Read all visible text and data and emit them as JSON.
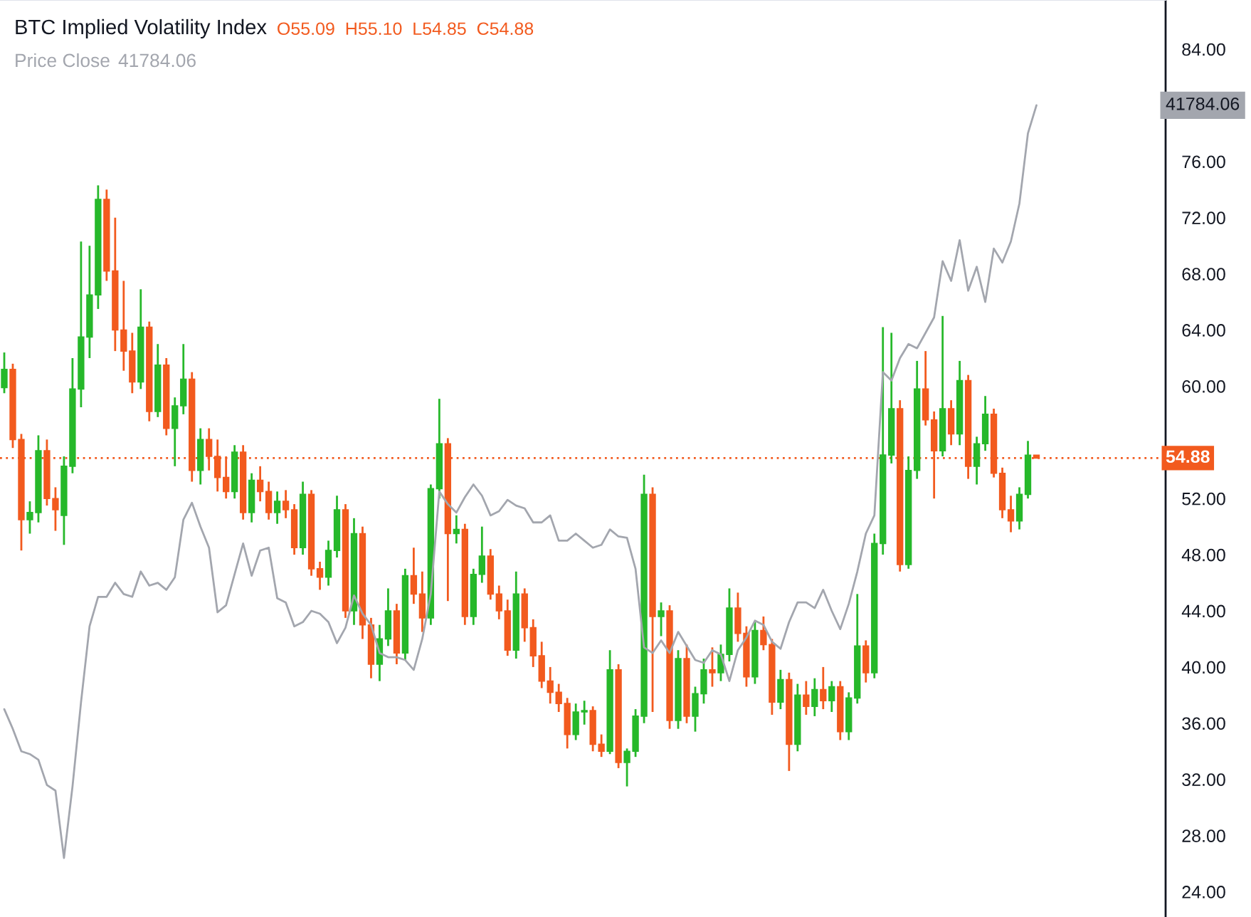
{
  "chart_data": {
    "type": "candlestick",
    "title": "BTC Implied Volatility Index",
    "categories": [
      null,
      null,
      null,
      null,
      null,
      null,
      null,
      null,
      null,
      null,
      null,
      null,
      null,
      null,
      null,
      null,
      null,
      null,
      null,
      null,
      null,
      null,
      null,
      null,
      null,
      null,
      null,
      null,
      null,
      null,
      null,
      null,
      null,
      null,
      null,
      null,
      null,
      null,
      null,
      null,
      null,
      null,
      null,
      null,
      null,
      null,
      null,
      null,
      null,
      null,
      null,
      null,
      null,
      null,
      null,
      null,
      null,
      null,
      null,
      null,
      null,
      null,
      null,
      null,
      null,
      null,
      null,
      null,
      null,
      null,
      null,
      null,
      null,
      null,
      null,
      null,
      null,
      null,
      null,
      null,
      null,
      null,
      null,
      null,
      null,
      null,
      null,
      null,
      null,
      null,
      null,
      null,
      null,
      null,
      null,
      null,
      null,
      null,
      null,
      null,
      null,
      null,
      null,
      null,
      null,
      null,
      null,
      null,
      null,
      null,
      null,
      null,
      null,
      null,
      null,
      null,
      null,
      null,
      null,
      null,
      null,
      null
    ],
    "ohlc": [
      [
        59.9,
        62.4,
        59.5,
        61.2
      ],
      [
        61.2,
        61.6,
        55.6,
        56.2
      ],
      [
        56.2,
        56.6,
        48.3,
        50.5
      ],
      [
        50.5,
        51.8,
        49.5,
        51.0
      ],
      [
        51.0,
        56.5,
        50.3,
        55.4
      ],
      [
        55.4,
        56.2,
        51.5,
        52.0
      ],
      [
        52.0,
        52.8,
        49.7,
        51.2
      ],
      [
        50.8,
        55.0,
        48.7,
        54.3
      ],
      [
        54.3,
        62.0,
        53.8,
        59.8
      ],
      [
        59.8,
        70.3,
        58.5,
        63.5
      ],
      [
        63.5,
        70.0,
        62.0,
        66.5
      ],
      [
        66.5,
        74.3,
        65.5,
        73.3
      ],
      [
        73.3,
        74.0,
        67.5,
        68.2
      ],
      [
        68.2,
        72.0,
        62.5,
        64.0
      ],
      [
        64.0,
        67.5,
        61.1,
        62.5
      ],
      [
        62.5,
        63.8,
        59.5,
        60.3
      ],
      [
        60.3,
        66.9,
        59.8,
        64.2
      ],
      [
        64.2,
        64.6,
        57.5,
        58.2
      ],
      [
        58.2,
        63.0,
        57.8,
        61.5
      ],
      [
        61.5,
        62.0,
        56.5,
        57.0
      ],
      [
        57.0,
        59.2,
        54.3,
        58.6
      ],
      [
        58.6,
        63.0,
        58.0,
        60.5
      ],
      [
        60.5,
        61.0,
        53.2,
        54.0
      ],
      [
        54.0,
        57.0,
        53.0,
        56.2
      ],
      [
        56.2,
        57.0,
        54.0,
        55.0
      ],
      [
        55.0,
        56.2,
        52.5,
        53.5
      ],
      [
        53.5,
        55.0,
        52.0,
        52.5
      ],
      [
        52.5,
        55.8,
        52.0,
        55.3
      ],
      [
        55.3,
        55.8,
        50.5,
        51.0
      ],
      [
        51.0,
        53.8,
        50.3,
        53.3
      ],
      [
        53.3,
        54.3,
        51.8,
        52.5
      ],
      [
        52.5,
        53.2,
        50.5,
        51.0
      ],
      [
        51.0,
        52.5,
        50.2,
        51.8
      ],
      [
        51.8,
        52.6,
        50.6,
        51.2
      ],
      [
        51.2,
        51.6,
        48.0,
        48.5
      ],
      [
        48.5,
        53.2,
        48.0,
        52.3
      ],
      [
        52.3,
        52.6,
        46.5,
        47.0
      ],
      [
        47.0,
        47.5,
        45.5,
        46.4
      ],
      [
        46.4,
        49.0,
        45.8,
        48.3
      ],
      [
        48.3,
        52.2,
        47.8,
        51.2
      ],
      [
        51.2,
        51.6,
        43.5,
        44.0
      ],
      [
        44.0,
        50.6,
        43.0,
        49.5
      ],
      [
        49.5,
        50.0,
        42.0,
        43.0
      ],
      [
        43.0,
        43.5,
        39.2,
        40.2
      ],
      [
        40.2,
        43.0,
        39.0,
        42.0
      ],
      [
        42.0,
        45.6,
        41.5,
        44.0
      ],
      [
        44.0,
        44.5,
        40.2,
        41.0
      ],
      [
        41.0,
        47.0,
        40.5,
        46.5
      ],
      [
        46.5,
        48.5,
        44.5,
        45.2
      ],
      [
        45.2,
        46.8,
        42.5,
        43.5
      ],
      [
        43.5,
        53.0,
        43.0,
        52.7
      ],
      [
        52.7,
        59.1,
        52.0,
        55.9
      ],
      [
        55.9,
        56.3,
        44.7,
        49.5
      ],
      [
        49.5,
        50.8,
        48.8,
        49.8
      ],
      [
        49.8,
        50.2,
        43.0,
        43.6
      ],
      [
        43.6,
        47.0,
        43.0,
        46.6
      ],
      [
        46.6,
        50.0,
        46.0,
        47.9
      ],
      [
        47.9,
        48.4,
        44.8,
        45.2
      ],
      [
        45.2,
        45.8,
        43.4,
        44.0
      ],
      [
        44.0,
        44.8,
        40.8,
        41.2
      ],
      [
        41.2,
        46.8,
        40.6,
        45.2
      ],
      [
        45.2,
        45.6,
        41.8,
        42.8
      ],
      [
        42.8,
        43.4,
        40.0,
        40.8
      ],
      [
        40.8,
        41.8,
        38.5,
        39.0
      ],
      [
        39.0,
        40.0,
        37.4,
        38.2
      ],
      [
        38.2,
        38.8,
        36.8,
        37.4
      ],
      [
        37.4,
        37.8,
        34.2,
        35.2
      ],
      [
        35.2,
        37.4,
        34.8,
        36.8
      ],
      [
        36.8,
        37.6,
        35.9,
        36.9
      ],
      [
        36.9,
        37.2,
        34.0,
        34.5
      ],
      [
        34.5,
        35.2,
        33.6,
        34.0
      ],
      [
        34.0,
        41.2,
        33.8,
        39.8
      ],
      [
        39.8,
        40.2,
        32.8,
        33.2
      ],
      [
        33.2,
        34.2,
        31.5,
        34.0
      ],
      [
        34.0,
        37.0,
        33.6,
        36.5
      ],
      [
        36.5,
        53.7,
        36.0,
        52.3
      ],
      [
        52.3,
        52.8,
        36.8,
        43.6
      ],
      [
        43.6,
        44.6,
        42.2,
        44.0
      ],
      [
        44.0,
        44.4,
        35.6,
        36.2
      ],
      [
        36.2,
        41.2,
        35.6,
        40.6
      ],
      [
        40.6,
        41.6,
        36.0,
        36.5
      ],
      [
        36.5,
        38.6,
        35.4,
        38.1
      ],
      [
        38.1,
        40.6,
        37.4,
        39.8
      ],
      [
        39.8,
        41.4,
        38.6,
        39.6
      ],
      [
        39.6,
        41.6,
        39.0,
        40.9
      ],
      [
        40.9,
        45.6,
        40.4,
        44.2
      ],
      [
        44.2,
        45.3,
        41.8,
        42.4
      ],
      [
        42.4,
        42.9,
        38.6,
        39.3
      ],
      [
        39.3,
        43.2,
        38.8,
        42.6
      ],
      [
        42.6,
        43.6,
        41.2,
        41.6
      ],
      [
        41.6,
        42.0,
        36.6,
        37.5
      ],
      [
        37.5,
        39.8,
        37.0,
        39.1
      ],
      [
        39.1,
        39.6,
        32.6,
        34.5
      ],
      [
        34.5,
        38.8,
        34.0,
        38.0
      ],
      [
        38.0,
        39.0,
        36.6,
        37.2
      ],
      [
        37.2,
        39.2,
        36.5,
        38.4
      ],
      [
        38.4,
        40.0,
        37.0,
        37.6
      ],
      [
        37.6,
        39.0,
        36.8,
        38.6
      ],
      [
        38.6,
        39.0,
        34.8,
        35.4
      ],
      [
        35.4,
        38.2,
        34.8,
        37.8
      ],
      [
        37.8,
        45.2,
        37.4,
        41.5
      ],
      [
        41.5,
        41.9,
        38.9,
        39.6
      ],
      [
        39.6,
        49.5,
        39.2,
        48.8
      ],
      [
        48.8,
        64.2,
        48.0,
        55.1
      ],
      [
        55.1,
        63.8,
        54.5,
        58.4
      ],
      [
        58.4,
        59.0,
        46.8,
        47.3
      ],
      [
        47.3,
        55.0,
        47.0,
        54.0
      ],
      [
        54.0,
        61.8,
        53.4,
        59.8
      ],
      [
        59.8,
        62.5,
        57.2,
        57.6
      ],
      [
        57.6,
        58.2,
        52.0,
        55.4
      ],
      [
        55.4,
        65.0,
        55.0,
        58.4
      ],
      [
        58.4,
        59.0,
        55.8,
        56.6
      ],
      [
        56.6,
        61.8,
        55.8,
        60.4
      ],
      [
        60.4,
        60.8,
        53.4,
        54.3
      ],
      [
        54.3,
        56.4,
        53.0,
        55.9
      ],
      [
        55.9,
        59.3,
        55.4,
        58.0
      ],
      [
        58.0,
        58.4,
        53.5,
        53.8
      ],
      [
        53.8,
        54.2,
        50.6,
        51.2
      ],
      [
        51.2,
        52.2,
        49.6,
        50.4
      ],
      [
        50.4,
        52.8,
        49.8,
        52.3
      ],
      [
        52.3,
        56.1,
        52.0,
        55.09
      ],
      [
        55.09,
        55.1,
        54.85,
        54.88
      ]
    ],
    "colors": [
      "#26b82a",
      "#f25a1e",
      "#f25a1e",
      "#26b82a",
      "#26b82a",
      "#f25a1e",
      "#f25a1e",
      "#26b82a",
      "#26b82a",
      "#26b82a",
      "#26b82a",
      "#26b82a",
      "#f25a1e",
      "#f25a1e",
      "#f25a1e",
      "#f25a1e",
      "#26b82a",
      "#f25a1e",
      "#26b82a",
      "#f25a1e",
      "#26b82a",
      "#26b82a",
      "#f25a1e",
      "#26b82a",
      "#f25a1e",
      "#f25a1e",
      "#f25a1e",
      "#26b82a",
      "#f25a1e",
      "#26b82a",
      "#f25a1e",
      "#f25a1e",
      "#26b82a",
      "#f25a1e",
      "#f25a1e",
      "#26b82a",
      "#f25a1e",
      "#f25a1e",
      "#26b82a",
      "#26b82a",
      "#f25a1e",
      "#26b82a",
      "#f25a1e",
      "#f25a1e",
      "#26b82a",
      "#26b82a",
      "#f25a1e",
      "#26b82a",
      "#f25a1e",
      "#f25a1e",
      "#26b82a",
      "#26b82a",
      "#f25a1e",
      "#26b82a",
      "#f25a1e",
      "#26b82a",
      "#26b82a",
      "#f25a1e",
      "#f25a1e",
      "#f25a1e",
      "#26b82a",
      "#f25a1e",
      "#f25a1e",
      "#f25a1e",
      "#f25a1e",
      "#f25a1e",
      "#f25a1e",
      "#26b82a",
      "#26b82a",
      "#f25a1e",
      "#f25a1e",
      "#26b82a",
      "#f25a1e",
      "#26b82a",
      "#26b82a",
      "#26b82a",
      "#f25a1e",
      "#26b82a",
      "#f25a1e",
      "#26b82a",
      "#f25a1e",
      "#26b82a",
      "#26b82a",
      "#f25a1e",
      "#26b82a",
      "#26b82a",
      "#f25a1e",
      "#f25a1e",
      "#26b82a",
      "#f25a1e",
      "#f25a1e",
      "#26b82a",
      "#f25a1e",
      "#26b82a",
      "#f25a1e",
      "#26b82a",
      "#f25a1e",
      "#26b82a",
      "#f25a1e",
      "#26b82a",
      "#26b82a",
      "#f25a1e",
      "#26b82a",
      "#26b82a",
      "#26b82a",
      "#f25a1e",
      "#26b82a",
      "#26b82a",
      "#f25a1e",
      "#f25a1e",
      "#26b82a",
      "#f25a1e",
      "#26b82a",
      "#f25a1e",
      "#26b82a",
      "#26b82a",
      "#f25a1e",
      "#f25a1e",
      "#f25a1e",
      "#26b82a",
      "#26b82a",
      "#f25a1e"
    ],
    "series": [
      {
        "name": "Price Close",
        "type": "line",
        "color": "#a3a6ae",
        "values": [
          37.0,
          35.6,
          34.0,
          33.8,
          33.4,
          31.6,
          31.2,
          26.4,
          31.5,
          37.5,
          42.9,
          45.0,
          45.0,
          46.0,
          45.2,
          45.0,
          46.8,
          45.8,
          46.0,
          45.5,
          46.4,
          50.5,
          51.7,
          50.0,
          48.5,
          43.9,
          44.4,
          46.6,
          48.8,
          46.5,
          48.3,
          48.5,
          44.9,
          44.6,
          42.9,
          43.2,
          44.0,
          43.8,
          43.2,
          41.7,
          42.8,
          45.1,
          43.8,
          43.0,
          41.0,
          40.7,
          40.7,
          40.5,
          39.8,
          42.0,
          45.2,
          52.5,
          51.6,
          51.0,
          52.1,
          53.0,
          52.2,
          50.8,
          51.1,
          51.9,
          51.5,
          51.3,
          50.3,
          50.3,
          50.8,
          49.0,
          49.0,
          49.5,
          49.0,
          48.5,
          48.7,
          49.8,
          49.3,
          49.2,
          47.0,
          41.4,
          41.0,
          41.9,
          41.0,
          42.5,
          41.5,
          40.5,
          40.3,
          41.2,
          40.9,
          39.0,
          41.2,
          42.1,
          43.3,
          43.0,
          41.8,
          41.3,
          43.2,
          44.6,
          44.6,
          44.2,
          45.5,
          44.0,
          42.7,
          44.5,
          46.8,
          49.5,
          50.8,
          61.0,
          60.4,
          62.0,
          63.0,
          62.7,
          63.8,
          64.9,
          68.9,
          67.5,
          70.4,
          66.8,
          68.5,
          66.0,
          69.8,
          68.8,
          70.3,
          73.0,
          78.0,
          80.0
        ]
      }
    ],
    "annotations": [
      "O55.09",
      "H55.10",
      "L54.85",
      "C54.88",
      "41784.06",
      "41784.06"
    ],
    "ref_lines": [
      {
        "axis": "y",
        "value": 54.88,
        "label": "54.88",
        "color": "#f25a1e",
        "line_style": "dotted"
      }
    ],
    "ylim": [
      22.2,
      87.5
    ],
    "yticks": [
      {
        "value": 24,
        "label": "24.00"
      },
      {
        "value": 28,
        "label": "28.00"
      },
      {
        "value": 32,
        "label": "32.00"
      },
      {
        "value": 36,
        "label": "36.00"
      },
      {
        "value": 40,
        "label": "40.00"
      },
      {
        "value": 44,
        "label": "44.00"
      },
      {
        "value": 48,
        "label": "48.00"
      },
      {
        "value": 52,
        "label": "52.00"
      },
      {
        "value": 60,
        "label": "60.00"
      },
      {
        "value": 64,
        "label": "64.00"
      },
      {
        "value": 68,
        "label": "68.00"
      },
      {
        "value": 72,
        "label": "72.00"
      },
      {
        "value": 76,
        "label": "76.00"
      },
      {
        "value": 84,
        "label": "84.00"
      }
    ],
    "tick_labels": "y"
  }
}
